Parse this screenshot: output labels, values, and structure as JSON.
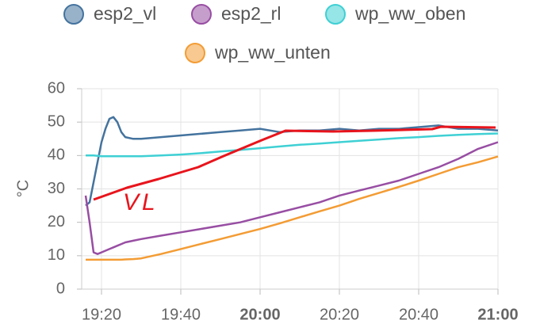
{
  "chart_data": {
    "type": "line",
    "y_label": "°C",
    "annotation": "VL",
    "x": [
      1156,
      1157,
      1158,
      1159,
      1160,
      1161,
      1162,
      1163,
      1164,
      1165,
      1166,
      1168,
      1170,
      1175,
      1180,
      1185,
      1190,
      1195,
      1200,
      1205,
      1210,
      1215,
      1220,
      1225,
      1230,
      1235,
      1240,
      1245,
      1250,
      1255,
      1260
    ],
    "series": [
      {
        "name": "esp2_vl",
        "color": "#44739e",
        "values": [
          25,
          26,
          32,
          38,
          44,
          48,
          51,
          51.5,
          50,
          47,
          45.5,
          45,
          45,
          45.5,
          46,
          46.5,
          47,
          47.5,
          48,
          47,
          47.5,
          47.5,
          48,
          47.5,
          48,
          48,
          48.5,
          49,
          48,
          48,
          47.5
        ]
      },
      {
        "name": "esp2_rl",
        "color": "#984ea3",
        "values": [
          28,
          20,
          11,
          10.5,
          11,
          11.5,
          12,
          12.5,
          13,
          13.5,
          14,
          14.5,
          15,
          16,
          17,
          18,
          19,
          20,
          21.5,
          23,
          24.5,
          26,
          28,
          29.5,
          31,
          32.5,
          34.5,
          36.5,
          39,
          42,
          44
        ]
      },
      {
        "name": "wp_ww_oben",
        "color": "#3fd0d4",
        "values": [
          40,
          40,
          40,
          39.9,
          39.8,
          39.8,
          39.8,
          39.8,
          39.8,
          39.8,
          39.8,
          39.8,
          39.8,
          40,
          40.3,
          40.7,
          41.2,
          41.7,
          42.2,
          42.7,
          43.2,
          43.6,
          44,
          44.4,
          44.8,
          45.2,
          45.5,
          45.9,
          46.2,
          46.4,
          46.6
        ]
      },
      {
        "name": "wp_ww_unten",
        "color": "#f39c34",
        "values": [
          8.8,
          8.8,
          8.8,
          8.8,
          8.8,
          8.8,
          8.8,
          8.8,
          8.8,
          8.8,
          8.9,
          9,
          9.2,
          10.5,
          12,
          13.5,
          15,
          16.5,
          18,
          19.7,
          21.5,
          23.3,
          25,
          27,
          28.8,
          30.6,
          32.5,
          34.5,
          36.5,
          38,
          39.7
        ]
      }
    ],
    "xlim": [
      1155,
      1260
    ],
    "xticks": [
      {
        "value": 1160,
        "label": "19:20"
      },
      {
        "value": 1180,
        "label": "19:40"
      },
      {
        "value": 1200,
        "label": "20:00"
      },
      {
        "value": 1220,
        "label": "20:20"
      },
      {
        "value": 1240,
        "label": "20:40"
      },
      {
        "value": 1260,
        "label": "21:00"
      }
    ],
    "ylim": [
      0,
      60
    ],
    "yticks": [
      0,
      10,
      20,
      30,
      40,
      50,
      60
    ],
    "grid": true
  }
}
